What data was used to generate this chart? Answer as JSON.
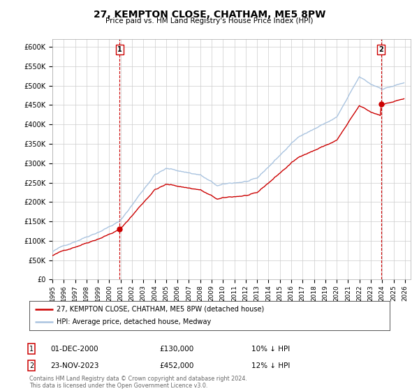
{
  "title": "27, KEMPTON CLOSE, CHATHAM, ME5 8PW",
  "subtitle": "Price paid vs. HM Land Registry's House Price Index (HPI)",
  "ylabel_ticks": [
    "£0",
    "£50K",
    "£100K",
    "£150K",
    "£200K",
    "£250K",
    "£300K",
    "£350K",
    "£400K",
    "£450K",
    "£500K",
    "£550K",
    "£600K"
  ],
  "ytick_values": [
    0,
    50000,
    100000,
    150000,
    200000,
    250000,
    300000,
    350000,
    400000,
    450000,
    500000,
    550000,
    600000
  ],
  "xlim_start": 1995,
  "xlim_end": 2026.5,
  "ylim": [
    0,
    620000
  ],
  "sale1_x": 2000.917,
  "sale1_y": 130000,
  "sale1_label": "1",
  "sale2_x": 2023.896,
  "sale2_y": 452000,
  "sale2_label": "2",
  "hpi_color": "#aac4e0",
  "price_color": "#cc0000",
  "legend_label1": "27, KEMPTON CLOSE, CHATHAM, ME5 8PW (detached house)",
  "legend_label2": "HPI: Average price, detached house, Medway",
  "footer": "Contains HM Land Registry data © Crown copyright and database right 2024.\nThis data is licensed under the Open Government Licence v3.0.",
  "background_color": "#ffffff",
  "grid_color": "#cccccc"
}
